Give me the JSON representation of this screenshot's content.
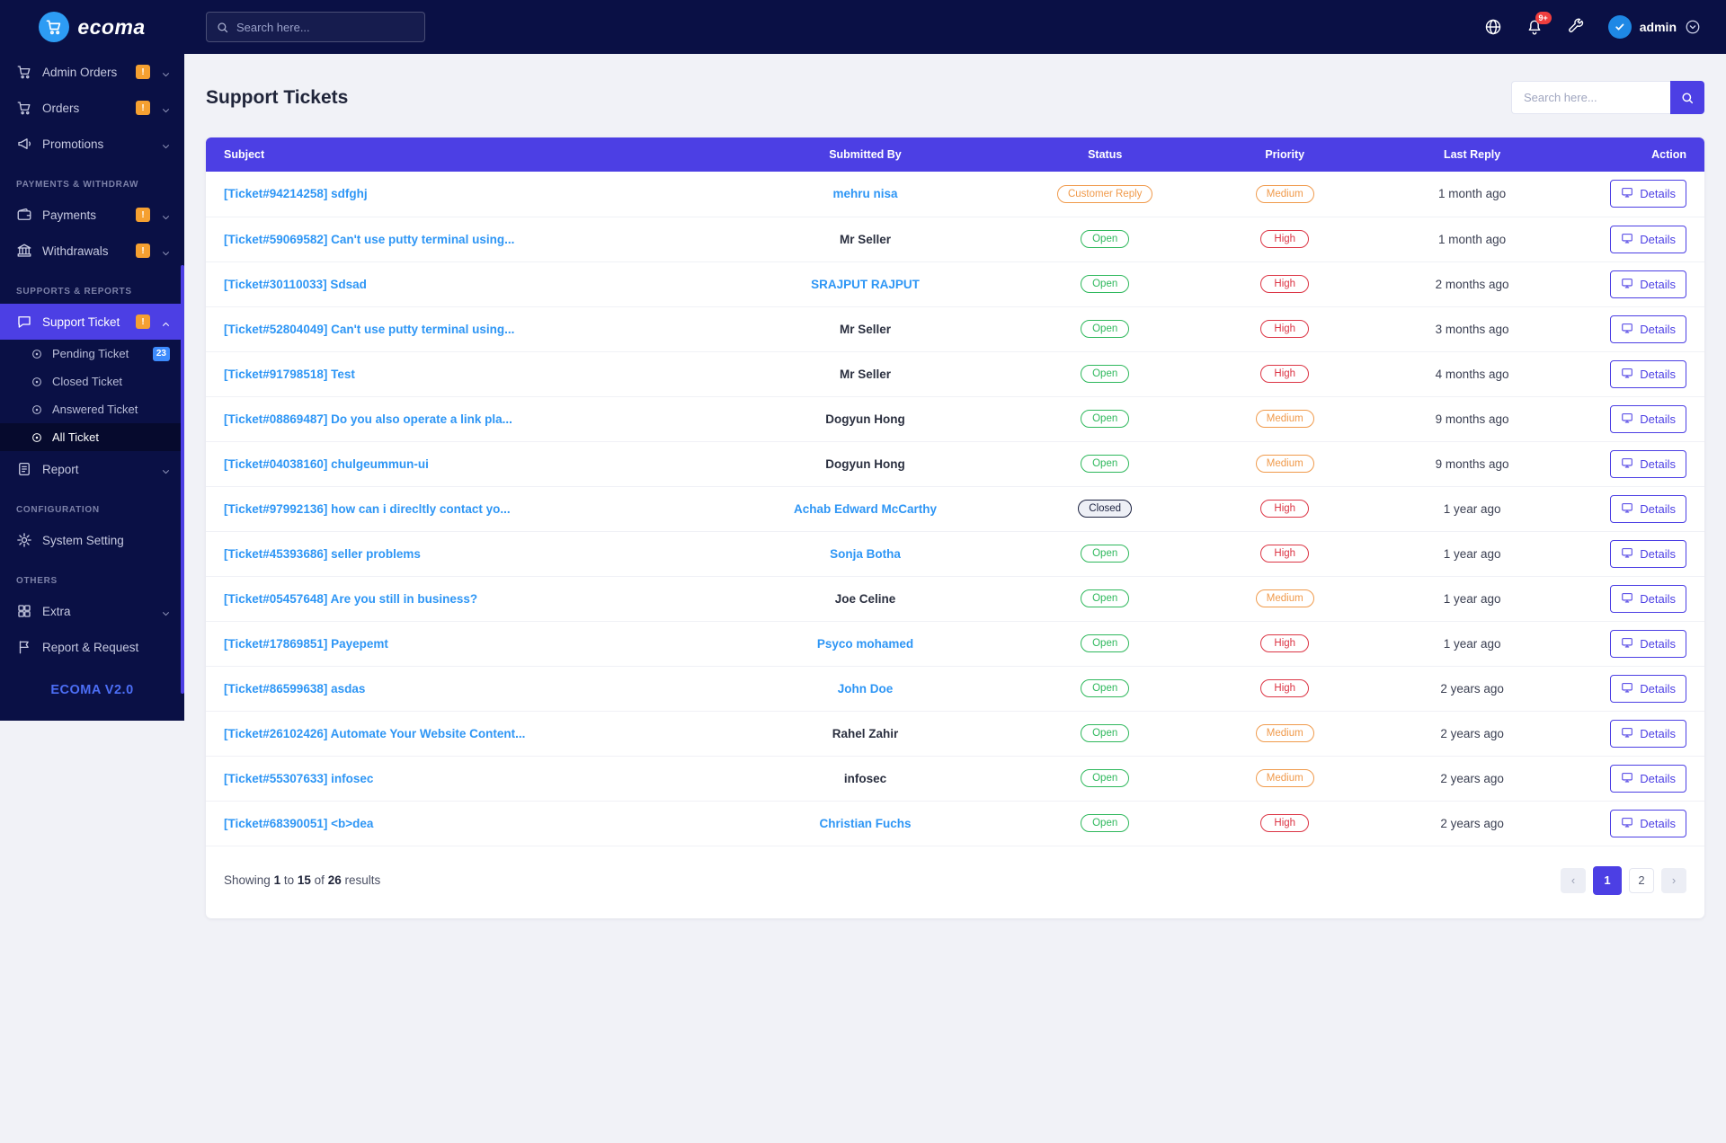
{
  "brand": {
    "name": "ecoma",
    "version": "ECOMA V2.0"
  },
  "topbar": {
    "search_placeholder": "Search here...",
    "notification_count": "9+",
    "user_name": "admin"
  },
  "sidebar": {
    "sections": [
      {
        "header": null,
        "items": [
          {
            "label": "Admin Orders",
            "icon": "cart",
            "badge": "!",
            "badge_color": "orange",
            "chevron": "down"
          },
          {
            "label": "Orders",
            "icon": "cart",
            "badge": "!",
            "badge_color": "orange",
            "chevron": "down"
          },
          {
            "label": "Promotions",
            "icon": "megaphone",
            "chevron": "down"
          }
        ]
      },
      {
        "header": "PAYMENTS & WITHDRAW",
        "items": [
          {
            "label": "Payments",
            "icon": "wallet",
            "badge": "!",
            "badge_color": "orange",
            "chevron": "down"
          },
          {
            "label": "Withdrawals",
            "icon": "bank",
            "badge": "!",
            "badge_color": "orange",
            "chevron": "down"
          }
        ]
      },
      {
        "header": "SUPPORTS & REPORTS",
        "items": [
          {
            "label": "Support Ticket",
            "icon": "ticket",
            "badge": "!",
            "badge_color": "orange",
            "chevron": "up",
            "active": true,
            "submenu": [
              {
                "label": "Pending Ticket",
                "badge": "23",
                "badge_color": "blue"
              },
              {
                "label": "Closed Ticket"
              },
              {
                "label": "Answered Ticket"
              },
              {
                "label": "All Ticket",
                "active": true
              }
            ]
          },
          {
            "label": "Report",
            "icon": "report",
            "chevron": "down"
          }
        ]
      },
      {
        "header": "CONFIGURATION",
        "items": [
          {
            "label": "System Setting",
            "icon": "gear"
          }
        ]
      },
      {
        "header": "OTHERS",
        "items": [
          {
            "label": "Extra",
            "icon": "grid",
            "chevron": "down"
          },
          {
            "label": "Report & Request",
            "icon": "flag"
          }
        ]
      }
    ]
  },
  "page": {
    "title": "Support Tickets",
    "search_placeholder": "Search here..."
  },
  "table": {
    "columns": [
      "Subject",
      "Submitted By",
      "Status",
      "Priority",
      "Last Reply",
      "Action"
    ],
    "action_label": "Details",
    "status_styles": {
      "Open": "green",
      "Closed": "dark",
      "Customer Reply": "orange"
    },
    "priority_styles": {
      "High": "red",
      "Medium": "orange"
    },
    "rows": [
      {
        "subject": "[Ticket#94214258] sdfghj",
        "submitted_by": "mehru nisa",
        "submitted_by_link": true,
        "status": "Customer Reply",
        "priority": "Medium",
        "last_reply": "1 month ago"
      },
      {
        "subject": "[Ticket#59069582] Can't use putty terminal using...",
        "submitted_by": "Mr Seller",
        "submitted_by_link": false,
        "status": "Open",
        "priority": "High",
        "last_reply": "1 month ago"
      },
      {
        "subject": "[Ticket#30110033] Sdsad",
        "submitted_by": "SRAJPUT RAJPUT",
        "submitted_by_link": true,
        "status": "Open",
        "priority": "High",
        "last_reply": "2 months ago"
      },
      {
        "subject": "[Ticket#52804049] Can't use putty terminal using...",
        "submitted_by": "Mr Seller",
        "submitted_by_link": false,
        "status": "Open",
        "priority": "High",
        "last_reply": "3 months ago"
      },
      {
        "subject": "[Ticket#91798518] Test",
        "submitted_by": "Mr Seller",
        "submitted_by_link": false,
        "status": "Open",
        "priority": "High",
        "last_reply": "4 months ago"
      },
      {
        "subject": "[Ticket#08869487] Do you also operate a link pla...",
        "submitted_by": "Dogyun Hong",
        "submitted_by_link": false,
        "status": "Open",
        "priority": "Medium",
        "last_reply": "9 months ago"
      },
      {
        "subject": "[Ticket#04038160] chulgeummun-ui",
        "submitted_by": "Dogyun Hong",
        "submitted_by_link": false,
        "status": "Open",
        "priority": "Medium",
        "last_reply": "9 months ago"
      },
      {
        "subject": "[Ticket#97992136] how can i direcltly contact yo...",
        "submitted_by": "Achab Edward McCarthy",
        "submitted_by_link": true,
        "status": "Closed",
        "priority": "High",
        "last_reply": "1 year ago"
      },
      {
        "subject": "[Ticket#45393686] seller problems",
        "submitted_by": "Sonja Botha",
        "submitted_by_link": true,
        "status": "Open",
        "priority": "High",
        "last_reply": "1 year ago"
      },
      {
        "subject": "[Ticket#05457648] Are you still in business?",
        "submitted_by": "Joe Celine",
        "submitted_by_link": false,
        "status": "Open",
        "priority": "Medium",
        "last_reply": "1 year ago"
      },
      {
        "subject": "[Ticket#17869851] Payepemt",
        "submitted_by": "Psyco mohamed",
        "submitted_by_link": true,
        "status": "Open",
        "priority": "High",
        "last_reply": "1 year ago"
      },
      {
        "subject": "[Ticket#86599638] asdas",
        "submitted_by": "John Doe",
        "submitted_by_link": true,
        "status": "Open",
        "priority": "High",
        "last_reply": "2 years ago"
      },
      {
        "subject": "[Ticket#26102426] Automate Your Website Content...",
        "submitted_by": "Rahel Zahir",
        "submitted_by_link": false,
        "status": "Open",
        "priority": "Medium",
        "last_reply": "2 years ago"
      },
      {
        "subject": "[Ticket#55307633] infosec",
        "submitted_by": "infosec",
        "submitted_by_link": false,
        "status": "Open",
        "priority": "Medium",
        "last_reply": "2 years ago"
      },
      {
        "subject": "[Ticket#68390051] <b>dea",
        "submitted_by": "Christian Fuchs",
        "submitted_by_link": true,
        "status": "Open",
        "priority": "High",
        "last_reply": "2 years ago"
      }
    ]
  },
  "footer": {
    "label_showing": "Showing",
    "from": "1",
    "label_to": "to",
    "to": "15",
    "label_of": "of",
    "total": "26",
    "label_results": "results",
    "pagination": {
      "prev": "‹",
      "pages": [
        "1",
        "2"
      ],
      "active": "1",
      "next": "›"
    }
  },
  "colors": {
    "accent": "#4c3fe4",
    "navy": "#0a1045",
    "link": "#2e96f5",
    "green": "#2eb85c",
    "red": "#dc3545",
    "orange": "#f09a4b"
  }
}
